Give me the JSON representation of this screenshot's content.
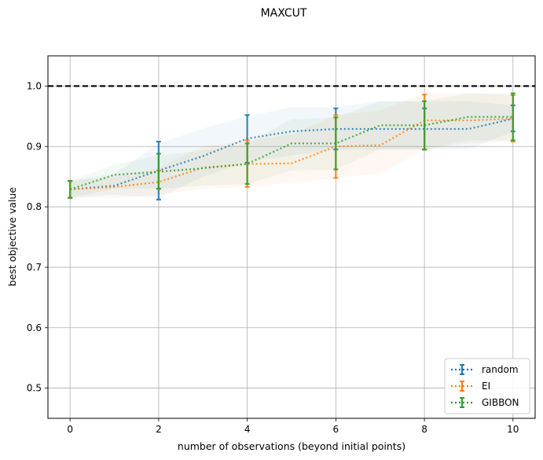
{
  "chart_data": {
    "type": "line",
    "title": "MAXCUT",
    "xlabel": "number of observations (beyond initial points)",
    "ylabel": "best objective value",
    "xlim": [
      -0.5,
      10.5
    ],
    "ylim": [
      0.45,
      1.05
    ],
    "x_ticks": [
      "0",
      "2",
      "4",
      "6",
      "8",
      "10"
    ],
    "y_ticks": [
      "0.5",
      "0.6",
      "0.7",
      "0.8",
      "0.9",
      "1.0"
    ],
    "grid": true,
    "legend_position": "lower-right",
    "reference_line": {
      "y": 1.0,
      "color": "#000000",
      "style": "dashed"
    },
    "x": [
      0,
      1,
      2,
      3,
      4,
      5,
      6,
      7,
      8,
      9,
      10
    ],
    "series": [
      {
        "name": "random",
        "color": "#1f77b4",
        "values": [
          0.829,
          0.835,
          0.86,
          0.884,
          0.913,
          0.925,
          0.929,
          0.929,
          0.929,
          0.929,
          0.946
        ],
        "band_low": [
          0.815,
          0.82,
          0.815,
          0.85,
          0.875,
          0.885,
          0.895,
          0.895,
          0.895,
          0.895,
          0.925
        ],
        "band_high": [
          0.843,
          0.855,
          0.905,
          0.93,
          0.95,
          0.965,
          0.965,
          0.975,
          0.975,
          0.975,
          0.968
        ],
        "error_x": [
          0,
          2,
          4,
          6,
          8,
          10
        ],
        "error_low": [
          0.815,
          0.812,
          0.873,
          0.895,
          0.895,
          0.925
        ],
        "error_high": [
          0.843,
          0.908,
          0.952,
          0.963,
          0.963,
          0.968
        ]
      },
      {
        "name": "EI",
        "color": "#ff7f0e",
        "values": [
          0.829,
          0.833,
          0.841,
          0.865,
          0.871,
          0.872,
          0.9,
          0.902,
          0.943,
          0.943,
          0.946
        ],
        "band_low": [
          0.815,
          0.815,
          0.82,
          0.83,
          0.833,
          0.84,
          0.848,
          0.855,
          0.895,
          0.905,
          0.908
        ],
        "band_high": [
          0.843,
          0.85,
          0.865,
          0.9,
          0.91,
          0.92,
          0.952,
          0.96,
          0.988,
          0.988,
          0.985
        ],
        "error_x": [
          0,
          2,
          4,
          6,
          8,
          10
        ],
        "error_low": [
          0.815,
          0.83,
          0.833,
          0.848,
          0.895,
          0.908
        ],
        "error_high": [
          0.843,
          0.86,
          0.91,
          0.952,
          0.986,
          0.985
        ]
      },
      {
        "name": "GIBBON",
        "color": "#2ca02c",
        "values": [
          0.829,
          0.853,
          0.858,
          0.864,
          0.871,
          0.905,
          0.905,
          0.935,
          0.935,
          0.949,
          0.949
        ],
        "band_low": [
          0.815,
          0.83,
          0.83,
          0.835,
          0.838,
          0.86,
          0.862,
          0.895,
          0.895,
          0.91,
          0.91
        ],
        "band_high": [
          0.843,
          0.87,
          0.885,
          0.893,
          0.905,
          0.945,
          0.948,
          0.975,
          0.975,
          0.988,
          0.988
        ],
        "error_x": [
          0,
          2,
          4,
          6,
          8,
          10
        ],
        "error_low": [
          0.815,
          0.83,
          0.838,
          0.862,
          0.895,
          0.91
        ],
        "error_high": [
          0.843,
          0.888,
          0.905,
          0.948,
          0.975,
          0.988
        ]
      }
    ]
  }
}
